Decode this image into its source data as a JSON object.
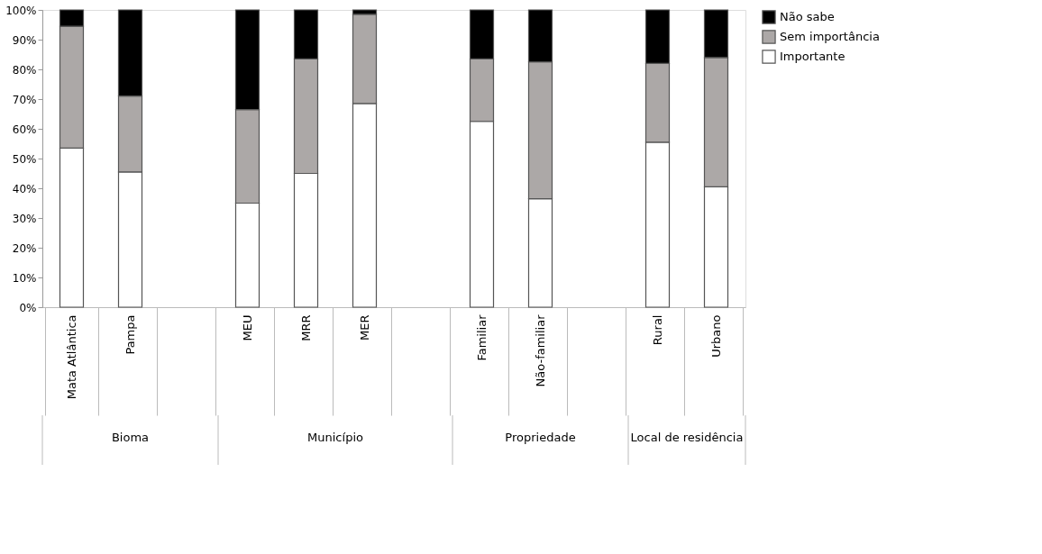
{
  "chart_data": {
    "type": "bar",
    "stacked": true,
    "legend": "right",
    "grid": false,
    "categories": [
      "Mata Atlântica",
      "Pampa",
      null,
      "MEU",
      "MRR",
      "MER",
      null,
      "Familiar",
      "Não-familiar",
      null,
      "Rural",
      "Urbano"
    ],
    "series": [
      {
        "name": "Importante",
        "color": "#ffffff",
        "values": [
          53.5,
          45.5,
          null,
          35,
          45,
          68.5,
          null,
          62.5,
          36.5,
          null,
          55.5,
          40.5
        ]
      },
      {
        "name": "Sem importância",
        "color": "#aca8a7",
        "values": [
          41,
          25.5,
          null,
          31.5,
          38.5,
          30,
          null,
          21,
          46,
          null,
          26.5,
          43.5
        ]
      },
      {
        "name": "Não sabe",
        "color": "#000000",
        "values": [
          5.5,
          29,
          null,
          33.5,
          16.5,
          1.5,
          null,
          16.5,
          17.5,
          null,
          18,
          16
        ]
      }
    ],
    "ylim": [
      0,
      100
    ],
    "yticks": [
      {
        "value": 0,
        "label": "0%"
      },
      {
        "value": 10,
        "label": "10%"
      },
      {
        "value": 20,
        "label": "20%"
      },
      {
        "value": 30,
        "label": "30%"
      },
      {
        "value": 40,
        "label": "40%"
      },
      {
        "value": 50,
        "label": "50%"
      },
      {
        "value": 60,
        "label": "60%"
      },
      {
        "value": 70,
        "label": "70%"
      },
      {
        "value": 80,
        "label": "80%"
      },
      {
        "value": 90,
        "label": "90%"
      },
      {
        "value": 100,
        "label": "100%"
      }
    ],
    "annotations": [
      "Bioma",
      "Município",
      "Propriedade",
      "Local de residência"
    ]
  }
}
